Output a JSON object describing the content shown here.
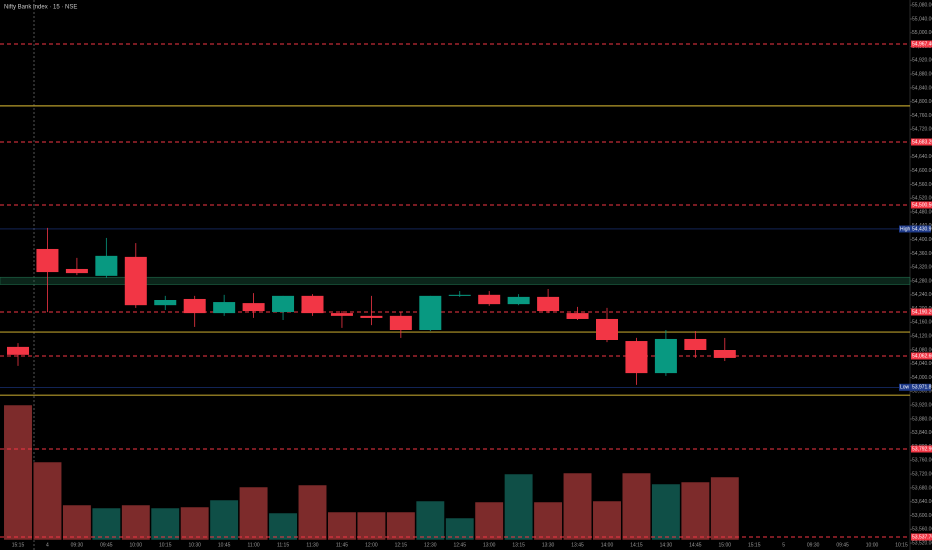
{
  "chart_data": {
    "type": "candlestick",
    "title": "Nifty Bank Index · 15 · NSE",
    "categories": [
      "15:15",
      "4",
      "09:30",
      "09:45",
      "10:00",
      "10:15",
      "10:30",
      "10:45",
      "11:00",
      "11:15",
      "11:30",
      "11:45",
      "12:00",
      "12:15",
      "12:30",
      "12:45",
      "13:00",
      "13:15",
      "13:30",
      "13:45",
      "14:00",
      "14:15",
      "14:30",
      "14:45",
      "15:00",
      "15:15",
      "5",
      "09:30",
      "09:45",
      "10:00",
      "10:15"
    ],
    "open": [
      54089,
      54373,
      54315,
      54295,
      54350,
      54210,
      54228,
      54187,
      54216,
      54190,
      54237,
      54187,
      54179,
      54179,
      54138,
      54237,
      54240,
      54213,
      54234,
      54187,
      54170,
      54106,
      54013,
      54112,
      54080,
      null,
      null,
      null,
      null,
      null,
      null
    ],
    "high": [
      54100,
      54434,
      54347,
      54405,
      54390,
      54237,
      54237,
      54240,
      54245,
      54237,
      54242,
      54193,
      54237,
      54190,
      54237,
      54251,
      54251,
      54242,
      54257,
      54205,
      54202,
      54115,
      54138,
      54135,
      54115,
      null,
      null,
      null,
      null,
      null,
      null
    ],
    "low": [
      54034,
      54190,
      54297,
      54289,
      54202,
      54196,
      54147,
      54179,
      54173,
      54167,
      54179,
      54144,
      54152,
      54115,
      54135,
      54234,
      54208,
      54210,
      54187,
      54167,
      54103,
      53979,
      54005,
      54057,
      54048,
      null,
      null,
      null,
      null,
      null,
      null
    ],
    "close": [
      54066,
      54306,
      54303,
      54353,
      54210,
      54225,
      54187,
      54219,
      54193,
      54237,
      54187,
      54179,
      54173,
      54138,
      54237,
      54240,
      54213,
      54234,
      54193,
      54170,
      54109,
      54013,
      54112,
      54080,
      54057,
      null,
      null,
      null,
      null,
      null,
      null
    ],
    "volume": [
      135,
      78,
      35,
      32,
      35,
      32,
      33,
      40,
      53,
      27,
      55,
      28,
      28,
      28,
      39,
      22,
      38,
      66,
      38,
      67,
      39,
      67,
      56,
      58,
      63,
      null,
      null,
      null,
      null,
      null,
      null
    ],
    "volume_ylim": [
      0,
      140
    ],
    "up_color": "#089981",
    "down_color": "#f23645",
    "volume_up_color": "#0f4f47",
    "volume_down_color": "#7d2b2b",
    "ylim": [
      53500,
      55095
    ],
    "yticks": [
      {
        "value": 55080,
        "label": "55,080.00"
      },
      {
        "value": 55040,
        "label": "55,040.00"
      },
      {
        "value": 55000,
        "label": "55,000.00"
      },
      {
        "value": 54960,
        "label": "54,960.00"
      },
      {
        "value": 54920,
        "label": "54,920.00"
      },
      {
        "value": 54880,
        "label": "54,880.00"
      },
      {
        "value": 54840,
        "label": "54,840.00"
      },
      {
        "value": 54800,
        "label": "54,800.00"
      },
      {
        "value": 54760,
        "label": "54,760.00"
      },
      {
        "value": 54720,
        "label": "54,720.00"
      },
      {
        "value": 54680,
        "label": "54,680.00"
      },
      {
        "value": 54640,
        "label": "54,640.00"
      },
      {
        "value": 54600,
        "label": "54,600.00"
      },
      {
        "value": 54560,
        "label": "54,560.00"
      },
      {
        "value": 54520,
        "label": "54,520.00"
      },
      {
        "value": 54480,
        "label": "54,480.00"
      },
      {
        "value": 54440,
        "label": "54,440.00"
      },
      {
        "value": 54400,
        "label": "54,400.00"
      },
      {
        "value": 54360,
        "label": "54,360.00"
      },
      {
        "value": 54320,
        "label": "54,320.00"
      },
      {
        "value": 54280,
        "label": "54,280.00"
      },
      {
        "value": 54240,
        "label": "54,240.00"
      },
      {
        "value": 54200,
        "label": "54,200.00"
      },
      {
        "value": 54160,
        "label": "54,160.00"
      },
      {
        "value": 54120,
        "label": "54,120.00"
      },
      {
        "value": 54080,
        "label": "54,080.00"
      },
      {
        "value": 54040,
        "label": "54,040.00"
      },
      {
        "value": 54000,
        "label": "54,000.00"
      },
      {
        "value": 53960,
        "label": "53,960.00"
      },
      {
        "value": 53920,
        "label": "53,920.00"
      },
      {
        "value": 53880,
        "label": "53,880.00"
      },
      {
        "value": 53840,
        "label": "53,840.00"
      },
      {
        "value": 53800,
        "label": "53,800.00"
      },
      {
        "value": 53760,
        "label": "53,760.00"
      },
      {
        "value": 53720,
        "label": "53,720.00"
      },
      {
        "value": 53680,
        "label": "53,680.00"
      },
      {
        "value": 53640,
        "label": "53,640.00"
      },
      {
        "value": 53600,
        "label": "53,600.00"
      },
      {
        "value": 53560,
        "label": "53,560.00"
      },
      {
        "value": 53520,
        "label": "53,520.00"
      }
    ],
    "levels": [
      {
        "value": 54967.4,
        "label": "54,967.40",
        "color": "#f23645"
      },
      {
        "value": 54683.2,
        "label": "54,683.20",
        "color": "#f23645"
      },
      {
        "value": 54500.5,
        "label": "54,500.50",
        "color": "#f23645"
      },
      {
        "value": 54190.2,
        "label": "54,190.20",
        "color": "#f23645"
      },
      {
        "value": 54062.6,
        "label": "54,062.60",
        "color": "#f23645"
      },
      {
        "value": 53792.9,
        "label": "53,792.90",
        "color": "#f23645"
      },
      {
        "value": 53537.7,
        "label": "53,537.70",
        "color": "#f23645"
      }
    ],
    "lines": [
      {
        "value": 54788,
        "color": "#b59a2a"
      },
      {
        "value": 54132,
        "color": "#b59a2a"
      },
      {
        "value": 53949,
        "color": "#b59a2a"
      }
    ],
    "zone": {
      "from": 54270,
      "to": 54291,
      "color": "#1f6b4a"
    },
    "markers": [
      {
        "tag": "High",
        "value": 54430.95,
        "value_label": "54,430.95",
        "color": "#1e3a8a"
      },
      {
        "tag": "Low",
        "value": 53971.85,
        "value_label": "53,971.85",
        "color": "#1e3a8a"
      }
    ]
  }
}
